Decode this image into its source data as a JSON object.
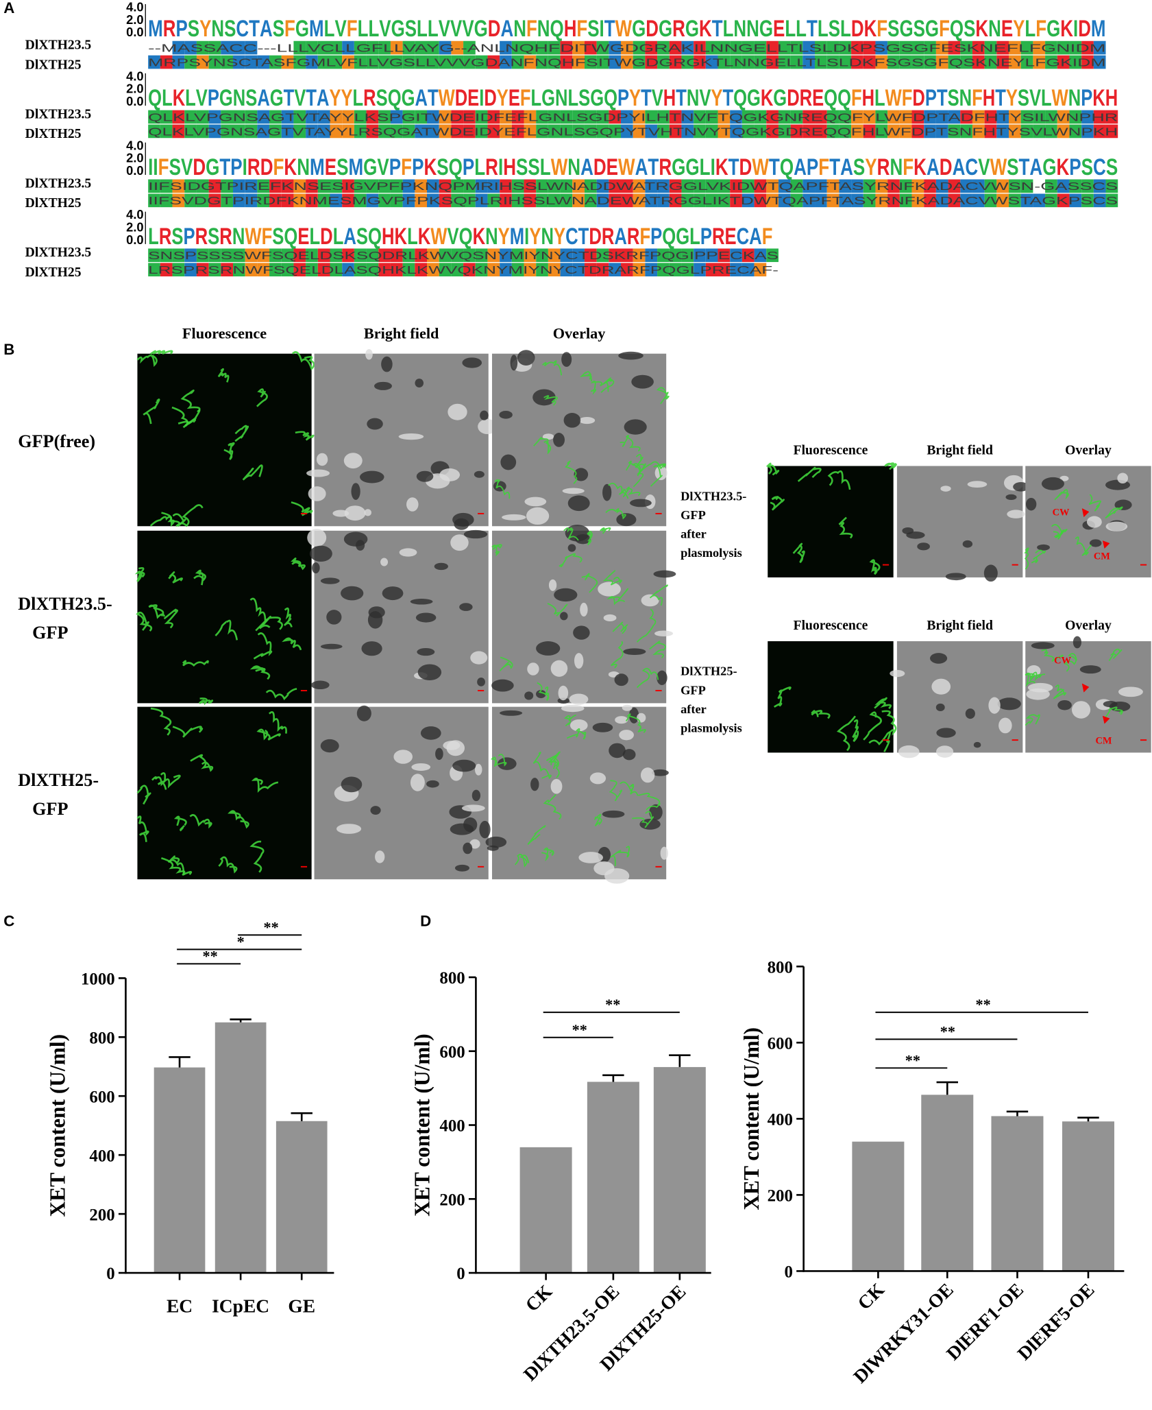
{
  "panel_labels": [
    "A",
    "B",
    "C",
    "D"
  ],
  "panel_a": {
    "logo_axis_ticks": [
      "4.0",
      "2.0",
      "0.0"
    ],
    "blocks": [
      {
        "rows": [
          {
            "name": "DlXTH23.5",
            "seq": "--MASSACC---LLLVCLLGFLLVAYG--ANLNQHFDITWGDGRAKILNNGELLTLSLDKPSGSGFESKNEFLFGNIDM"
          },
          {
            "name": "DlXTH25",
            "seq": "MRPSYNSCTASFGMLVFLLVGSLLVVVGDANFNQHFSITWGDGRGKTLNNGELLTLSLDKFSGSGFQSKNEYLFGKIDM"
          }
        ]
      },
      {
        "rows": [
          {
            "name": "DlXTH23.5",
            "seq": "QLKLVPGNSAGTVTAYYLKSPGITWDEIDFEFLGNLSGDPYILHTNVFTQGKGNREQQFYLWFDPTADFHTYSILWNPHR"
          },
          {
            "name": "DlXTH25",
            "seq": "QLKLVPGNSAGTVTAYYLRSQGATWDEIDYEFLGNLSGQPYTVHTNVYTQGKGDREQQFHLWFDPTSNFHTYSVLWNPKH"
          }
        ]
      },
      {
        "rows": [
          {
            "name": "DlXTH23.5",
            "seq": "IIFSIDGTPIREFKNSESIGVPFPKNQPMRIHSSLWNADDWATRGGLVKIDWTQAPFTASYRNFKADACVWSN-GASSCS"
          },
          {
            "name": "DlXTH25",
            "seq": "IIFSVDGTPIRDFKNMESMGVPFPKSQPLRIHSSLWNADEWATRGGLIKTDWTQAPFTASYRNFKADACVWSTAGKPSCS"
          }
        ]
      },
      {
        "rows": [
          {
            "name": "DlXTH23.5",
            "seq": "SNSPSSSSWFSQELDSKSQDRLKWVQSNYMIYNYCTDSKRFPQGIPPECKAS"
          },
          {
            "name": "DlXTH25",
            "seq": "LRSPRSRNWFSQELDLASQHKLKWVQKNYMIYNYCTDRARFPQGLPRECAF-"
          }
        ]
      }
    ]
  },
  "panel_b": {
    "col_headers": [
      "Fluorescence",
      "Bright field",
      "Overlay"
    ],
    "rows": [
      {
        "label_lines": [
          "GFP(free)"
        ]
      },
      {
        "label_lines": [
          "DlXTH23.5-",
          "GFP"
        ]
      },
      {
        "label_lines": [
          "DlXTH25-",
          "GFP"
        ]
      }
    ],
    "insets": [
      {
        "col_headers": [
          "Fluorescence",
          "Bright field",
          "Overlay"
        ],
        "label_lines": [
          "DlXTH23.5-",
          "GFP",
          "after",
          "plasmolysis"
        ],
        "annotations": [
          "CW",
          "CM"
        ]
      },
      {
        "col_headers": [
          "Fluorescence",
          "Bright field",
          "Overlay"
        ],
        "label_lines": [
          "DlXTH25-",
          "GFP",
          "after",
          "plasmolysis"
        ],
        "annotations": [
          "CW",
          "CM"
        ]
      }
    ]
  },
  "chart_data": [
    {
      "type": "bar",
      "ylabel": "XET content (U/ml)",
      "color": "#939393",
      "categories": [
        "EC",
        "ICpEC",
        "GE"
      ],
      "values": [
        697,
        850,
        515
      ],
      "errors": [
        35,
        10,
        27
      ],
      "ylim": [
        0,
        1000
      ],
      "yticks": [
        0,
        200,
        400,
        600,
        800,
        1000
      ],
      "comparisons": [
        {
          "pair": [
            0,
            1
          ],
          "label": "**"
        },
        {
          "pair": [
            0,
            2
          ],
          "label": "*"
        },
        {
          "pair": [
            1,
            2
          ],
          "label": "**"
        }
      ]
    },
    {
      "type": "bar",
      "ylabel": "XET content (U/ml)",
      "color": "#939393",
      "categories": [
        "CK",
        "DlXTH23.5-OE",
        "DlXTH25-OE"
      ],
      "values": [
        340,
        517,
        557
      ],
      "errors": [
        null,
        18,
        32
      ],
      "ylim": [
        0,
        800
      ],
      "yticks": [
        0,
        200,
        400,
        600,
        800
      ],
      "comparisons": [
        {
          "pair": [
            0,
            1
          ],
          "label": "**"
        },
        {
          "pair": [
            0,
            2
          ],
          "label": "**"
        }
      ]
    },
    {
      "type": "bar",
      "ylabel": "XET content (U/ml)",
      "color": "#939393",
      "categories": [
        "CK",
        "DlWRKY31-OE",
        "DlERF1-OE",
        "DlERF5-OE"
      ],
      "values": [
        340,
        463,
        407,
        393
      ],
      "errors": [
        null,
        33,
        12,
        10
      ],
      "ylim": [
        0,
        800
      ],
      "yticks": [
        0,
        200,
        400,
        600,
        800
      ],
      "comparisons": [
        {
          "pair": [
            0,
            1
          ],
          "label": "**"
        },
        {
          "pair": [
            0,
            2
          ],
          "label": "**"
        },
        {
          "pair": [
            0,
            3
          ],
          "label": "**"
        }
      ]
    }
  ]
}
